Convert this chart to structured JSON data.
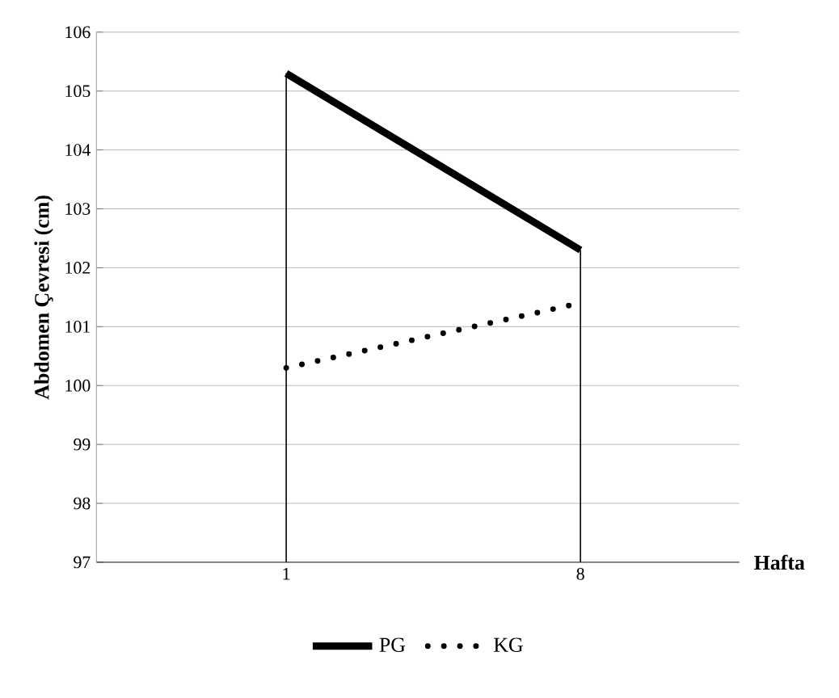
{
  "chart_data": {
    "type": "line",
    "xlabel": "Hafta",
    "ylabel": "Abdomen Çevresi (cm)",
    "categories": [
      "1",
      "8"
    ],
    "series": [
      {
        "name": "PG",
        "color": "#000000",
        "line_style": "solid",
        "values": [
          105.3,
          102.3
        ]
      },
      {
        "name": "KG",
        "color": "#000000",
        "line_style": "dotted",
        "values": [
          100.3,
          101.4
        ]
      }
    ],
    "ylim": [
      97,
      106
    ],
    "yticks": [
      97,
      98,
      99,
      100,
      101,
      102,
      103,
      104,
      105,
      106
    ],
    "grid": "y",
    "legend": "bottom",
    "marker": "none",
    "ref_lines": [
      {
        "axis": "x",
        "value": "1",
        "color": "#000000"
      },
      {
        "axis": "x",
        "value": "8",
        "color": "#000000"
      }
    ]
  }
}
